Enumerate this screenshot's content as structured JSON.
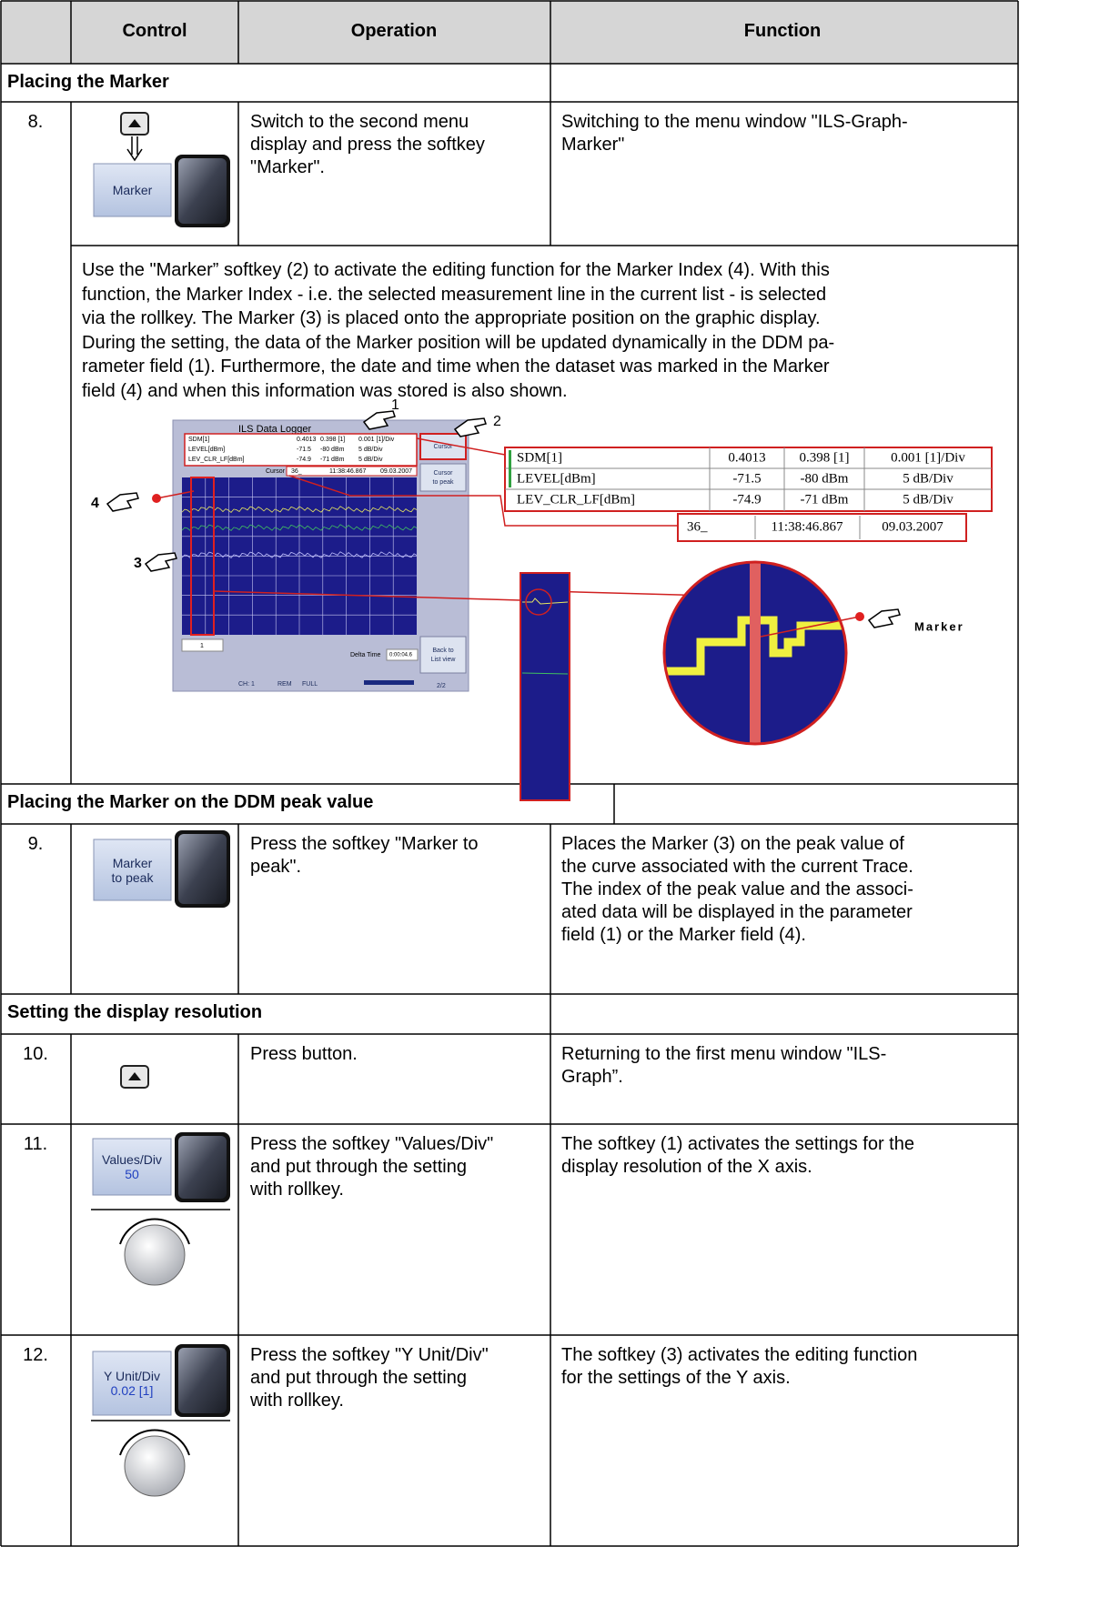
{
  "header": {
    "columns": [
      "Control",
      "Operation",
      "Function"
    ]
  },
  "sections": [
    {
      "title": "Placing the Marker",
      "rows": [
        {
          "number": "8.",
          "control": [
            "Marker"
          ],
          "operation": [
            "Switch to the second menu",
            "display and press the softkey",
            "\"Marker\"."
          ],
          "function": [
            "Switching to the menu window \"ILS-Graph-",
            "Marker\""
          ]
        }
      ],
      "description": [
        "Use the \"Marker” softkey (2) to activate the editing function for the Marker Index (4). With this",
        "function, the Marker Index - i.e. the selected measurement line in the current list - is selected",
        "via the rollkey. The Marker (3) is placed onto the appropriate position on the graphic display.",
        "During the setting, the data of the Marker position will be updated dynamically in the DDM pa-",
        "rameter field (1). Furthermore, the date and time when the dataset was marked in the Marker",
        "field (4) and when this information was stored is also shown."
      ],
      "figure": {
        "screen": {
          "title": "ILS Data Logger",
          "params": [
            [
              "SDM[1]",
              "0.4013",
              "0.398 [1]",
              "0.001 [1]/Div"
            ],
            [
              "LEVEL[dBm]",
              "-71.5",
              "-80 dBm",
              "5 dB/Div"
            ],
            [
              "LEV_CLR_LF[dBm]",
              "-74.9",
              "-71 dBm",
              "5 dB/Div"
            ]
          ],
          "cursor_label": "Cursor",
          "cursor": [
            "36_",
            "11:38:46.867",
            "09.03.2007"
          ],
          "softkeys": [
            [
              "Cursor"
            ],
            [
              "Cursor",
              "to peak"
            ],
            [
              "Back to",
              "List view"
            ]
          ],
          "page": "2/2",
          "index": "1",
          "delta_label": "Delta Time",
          "delta": "0:00:04.6",
          "status": [
            "CH: 1",
            "REM",
            "FULL"
          ]
        },
        "callouts": [
          "1",
          "2",
          "3",
          "4",
          "Marker"
        ],
        "zoom": {
          "params": [
            [
              "SDM[1]",
              "0.4013",
              "0.398 [1]",
              "0.001 [1]/Div"
            ],
            [
              "LEVEL[dBm]",
              "-71.5",
              "-80 dBm",
              "5 dB/Div"
            ],
            [
              "LEV_CLR_LF[dBm]",
              "-74.9",
              "-71 dBm",
              "5 dB/Div"
            ]
          ],
          "cursor": [
            "36_",
            "11:38:46.867",
            "09.03.2007"
          ]
        }
      }
    },
    {
      "title": "Placing the Marker on the DDM peak value",
      "rows": [
        {
          "number": "9.",
          "control": [
            "Marker",
            "to peak"
          ],
          "operation": [
            "Press the softkey \"Marker to",
            "peak\"."
          ],
          "function": [
            "Places the Marker (3) on the peak value of",
            "the curve associated with the current Trace.",
            "The index of the peak value and the associ-",
            "ated data will be displayed in the parameter",
            "field (1) or the Marker field (4)."
          ]
        }
      ]
    },
    {
      "title": "Setting the display resolution",
      "rows": [
        {
          "number": "10.",
          "operation": [
            "Press button."
          ],
          "function": [
            "Returning to the first menu window \"ILS-",
            "Graph”."
          ]
        },
        {
          "number": "11.",
          "control": [
            "Values/Div",
            "50"
          ],
          "operation": [
            "Press the softkey \"Values/Div\"",
            "and put through the setting",
            "with rollkey."
          ],
          "function": [
            "The softkey (1) activates the settings for the",
            "display resolution of the X axis."
          ]
        },
        {
          "number": "12.",
          "control": [
            "Y Unit/Div",
            "0.02  [1]"
          ],
          "operation": [
            "Press the softkey \"Y Unit/Div\"",
            "and put through the setting",
            "with rollkey."
          ],
          "function": [
            "The softkey (3) activates the editing function",
            "for the settings of the Y axis."
          ]
        }
      ]
    }
  ]
}
